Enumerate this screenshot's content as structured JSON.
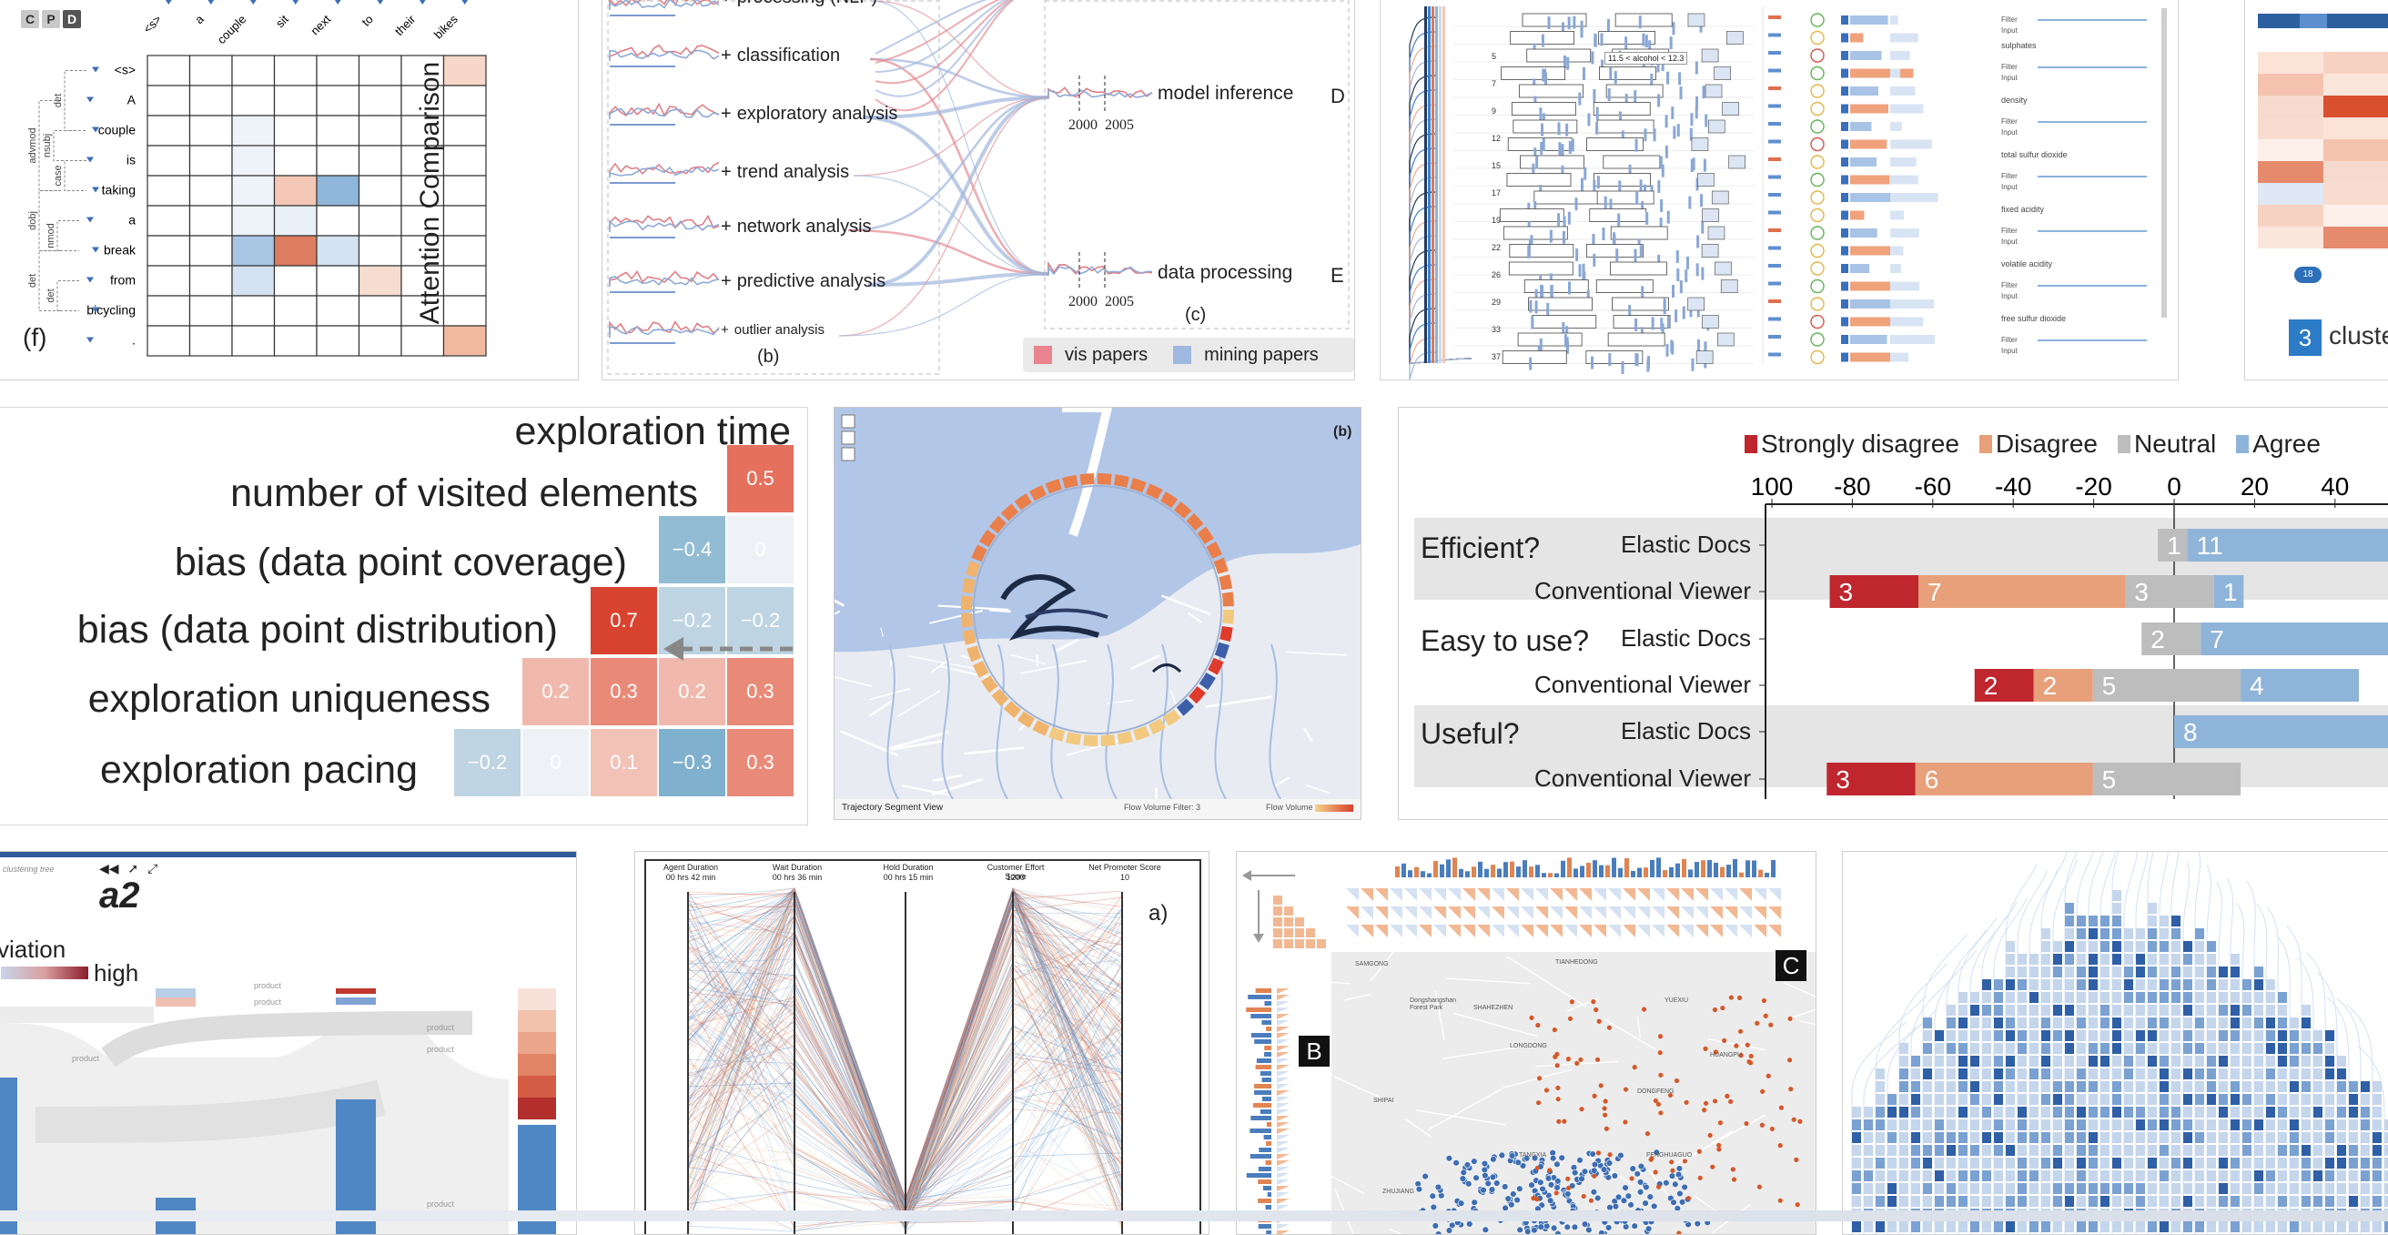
{
  "attention": {
    "tag": "(f)",
    "title": "Attention Comparison",
    "buttons": [
      "C",
      "P",
      "D"
    ],
    "top_tokens": [
      "<s>",
      "a",
      "couple",
      "sit",
      "next",
      "to",
      "their",
      "bikes"
    ],
    "row_tokens": [
      "<s>",
      "A",
      "couple",
      "is",
      "taking",
      "a",
      "break",
      "from",
      "bicycling",
      "."
    ],
    "dep_labels": [
      "advmod",
      "nsubj",
      "dobj",
      "nmod",
      "det",
      "det",
      "det",
      "case"
    ]
  },
  "trends": {
    "left_items": [
      "processing (NLP)",
      "classification",
      "exploratory analysis",
      "trend analysis",
      "network analysis",
      "predictive analysis",
      "outlier analysis"
    ],
    "sub_b": "(b)",
    "sub_c": "(c)",
    "right_items": [
      {
        "label": "model inference",
        "letter": "D",
        "years": [
          "2000",
          "2005"
        ]
      },
      {
        "label": "data processing",
        "letter": "E",
        "years": [
          "2000",
          "2005"
        ]
      }
    ],
    "legend": {
      "vis": "vis papers",
      "mining": "mining papers",
      "vis_color": "#e9838d",
      "mining_color": "#9fb8df"
    },
    "tooltip": "11.5 < alcohol < 12.3"
  },
  "wine": {
    "filter_groups": [
      "sulphates",
      "density",
      "total sulfur dioxide",
      "fixed acidity",
      "volatile acidity",
      "free sulfur dioxide"
    ],
    "filter_label": "Filter",
    "input_label": "Input",
    "row_numbers": [
      "5",
      "7",
      "9",
      "12",
      "15",
      "17",
      "19",
      "22",
      "26",
      "29",
      "33",
      "37"
    ]
  },
  "cluster": {
    "count": "3",
    "label": "cluste",
    "badge": "18"
  },
  "correlation": {
    "rows": [
      "exploration time",
      "number of visited elements",
      "bias (data point coverage)",
      "bias (data point distribution)",
      "exploration uniqueness",
      "exploration pacing"
    ],
    "values": [
      [
        "0.5"
      ],
      [
        "−0.4",
        "0"
      ],
      [
        "0.7",
        "−0.2",
        "−0.2"
      ],
      [
        "0.2",
        "0.3",
        "0.2",
        "0.3"
      ],
      [
        "−0.2",
        "0",
        "0.1",
        "−0.3",
        "0.3"
      ]
    ]
  },
  "map": {
    "tag": "(b)",
    "footer": "Trajectory Segment View",
    "filter_label": "Flow Volume Filter: 3",
    "legend_label": "Flow Volume"
  },
  "survey": {
    "legend": [
      {
        "label": "Strongly disagree",
        "color": "#c0262e"
      },
      {
        "label": "Disagree",
        "color": "#e7a07a"
      },
      {
        "label": "Neutral",
        "color": "#bdbdbd"
      },
      {
        "label": "Agree",
        "color": "#8fb4d9"
      }
    ],
    "axis_ticks": [
      "100",
      "-80",
      "-60",
      "-40",
      "-20",
      "0",
      "20",
      "40"
    ],
    "questions": [
      "Efficient?",
      "Easy to use?",
      "Useful?"
    ],
    "row_labels": [
      "Elastic Docs",
      "Conventional Viewer",
      "Elastic Docs",
      "Conventional Viewer",
      "Elastic Docs",
      "Conventional Viewer"
    ],
    "chart_data": {
      "type": "bar",
      "x_range": [
        -100,
        50
      ],
      "rows": [
        {
          "question": "Efficient?",
          "tool": "Elastic Docs",
          "strongly_disagree": 0,
          "disagree": 0,
          "neutral": 1,
          "agree": 11
        },
        {
          "question": "Efficient?",
          "tool": "Conventional Viewer",
          "strongly_disagree": 3,
          "disagree": 7,
          "neutral": 3,
          "agree": 1
        },
        {
          "question": "Easy to use?",
          "tool": "Elastic Docs",
          "strongly_disagree": 0,
          "disagree": 0,
          "neutral": 2,
          "agree": 7
        },
        {
          "question": "Easy to use?",
          "tool": "Conventional Viewer",
          "strongly_disagree": 2,
          "disagree": 2,
          "neutral": 5,
          "agree": 4
        },
        {
          "question": "Useful?",
          "tool": "Elastic Docs",
          "strongly_disagree": 0,
          "disagree": 0,
          "neutral": 0,
          "agree": 8
        },
        {
          "question": "Useful?",
          "tool": "Conventional Viewer",
          "strongly_disagree": 3,
          "disagree": 6,
          "neutral": 5,
          "agree": 0
        }
      ]
    }
  },
  "tree": {
    "header": "clustering tree",
    "label": "a2",
    "legend_left": "viation",
    "legend_right": "high",
    "node_label": "product"
  },
  "parallel": {
    "tag": "a)",
    "axes": [
      {
        "name": "Agent Duration",
        "value": "00 hrs 42 min"
      },
      {
        "name": "Wait Duration",
        "value": "00 hrs 36 min"
      },
      {
        "name": "Hold Duration",
        "value": "00 hrs 15 min"
      },
      {
        "name": "Customer Effort Score",
        "value": "1200"
      },
      {
        "name": "Net Promoter Score",
        "value": "10"
      }
    ]
  },
  "citymap": {
    "label_b": "B",
    "label_c": "C",
    "places": [
      "SAMGONG",
      "TIANHEDONG",
      "YUEXIU",
      "Dongshangshan Forest Park",
      "SHAHEZHEN",
      "LONGDONG",
      "DONGFENG",
      "SHIPAI",
      "TANGXIA",
      "FENGHUAGUO",
      "ZHUJIANG",
      "HUANGPU"
    ]
  }
}
